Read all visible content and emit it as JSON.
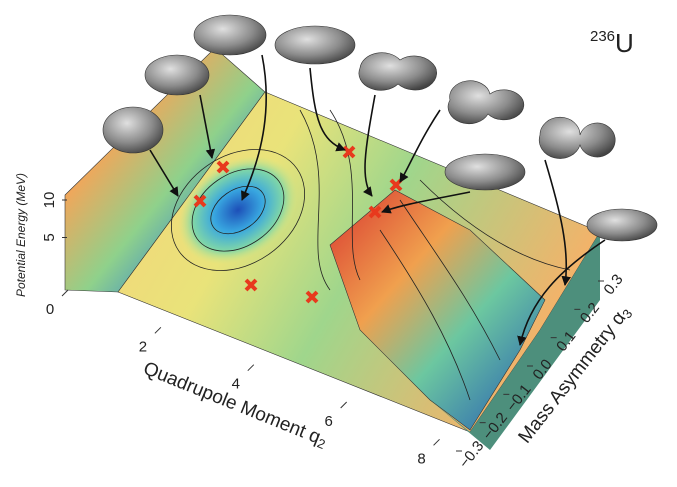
{
  "chart_data": {
    "type": "surface3d",
    "nucleus": {
      "mass": "236",
      "symbol": "U"
    },
    "xlabel": {
      "text": "Quadrupole Moment q",
      "subscript": "2"
    },
    "ylabel": {
      "text": "Mass Asymmetry α",
      "subscript": "3"
    },
    "zlabel": "Potential Energy (MeV)",
    "xlim": [
      0,
      9
    ],
    "xticks": [
      0,
      2,
      4,
      6,
      8
    ],
    "ylim": [
      -0.3,
      0.3
    ],
    "yticks": [
      {
        "value": -0.3,
        "label": "−0.3"
      },
      {
        "value": -0.2,
        "label": "−0.2"
      },
      {
        "value": -0.1,
        "label": "−0.1"
      },
      {
        "value": 0,
        "label": "0.0"
      },
      0.1,
      0.2,
      0.3
    ],
    "zlim": [
      0,
      10
    ],
    "zticks": [
      5,
      10
    ]
  }
}
